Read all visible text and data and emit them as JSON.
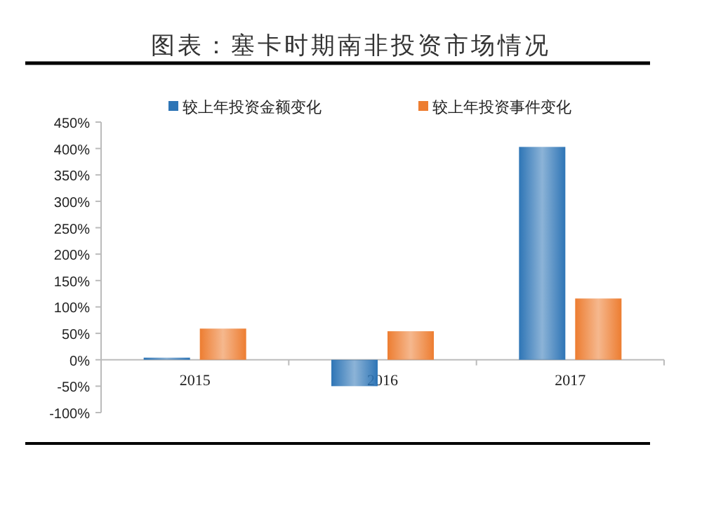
{
  "chart_data": {
    "type": "bar",
    "title": "图表：塞卡时期南非投资市场情况",
    "categories": [
      "2015",
      "2016",
      "2017"
    ],
    "series": [
      {
        "name": "较上年投资金额变化",
        "color": "#2e75b6",
        "values": [
          4,
          -50,
          403
        ]
      },
      {
        "name": "较上年投资事件变化",
        "color": "#ed7d31",
        "values": [
          59,
          54,
          116
        ]
      }
    ],
    "ylim": [
      -100,
      450
    ],
    "yticks": [
      {
        "value": -100,
        "label": "-100%"
      },
      {
        "value": -50,
        "label": "-50%"
      },
      {
        "value": 0,
        "label": "0%"
      },
      {
        "value": 50,
        "label": "50%"
      },
      {
        "value": 100,
        "label": "100%"
      },
      {
        "value": 150,
        "label": "150%"
      },
      {
        "value": 200,
        "label": "200%"
      },
      {
        "value": 250,
        "label": "250%"
      },
      {
        "value": 300,
        "label": "300%"
      },
      {
        "value": 350,
        "label": "350%"
      },
      {
        "value": 400,
        "label": "400%"
      },
      {
        "value": 450,
        "label": "450%"
      }
    ],
    "grid": false,
    "legend": "top"
  }
}
